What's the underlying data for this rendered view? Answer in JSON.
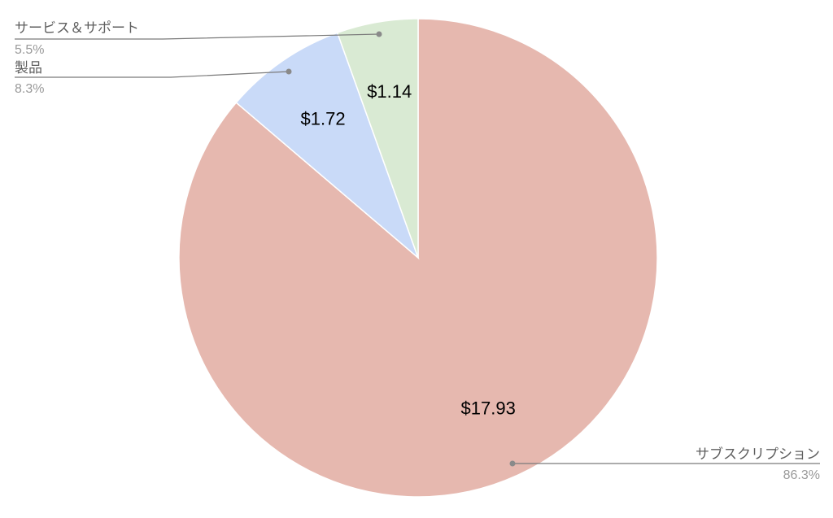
{
  "chart_data": {
    "type": "pie",
    "title": "",
    "slices": [
      {
        "name": "サブスクリプション",
        "value": 17.93,
        "value_label": "$17.93",
        "percent_label": "86.3%",
        "color": "#e6b8af"
      },
      {
        "name": "製品",
        "value": 1.72,
        "value_label": "$1.72",
        "percent_label": "8.3%",
        "color": "#c9daf8"
      },
      {
        "name": "サービス＆サポート",
        "value": 1.14,
        "value_label": "$1.14",
        "percent_label": "5.5%",
        "color": "#d9ead3"
      }
    ],
    "start_angle_deg": 0,
    "direction": "clockwise",
    "legend": "callouts"
  }
}
